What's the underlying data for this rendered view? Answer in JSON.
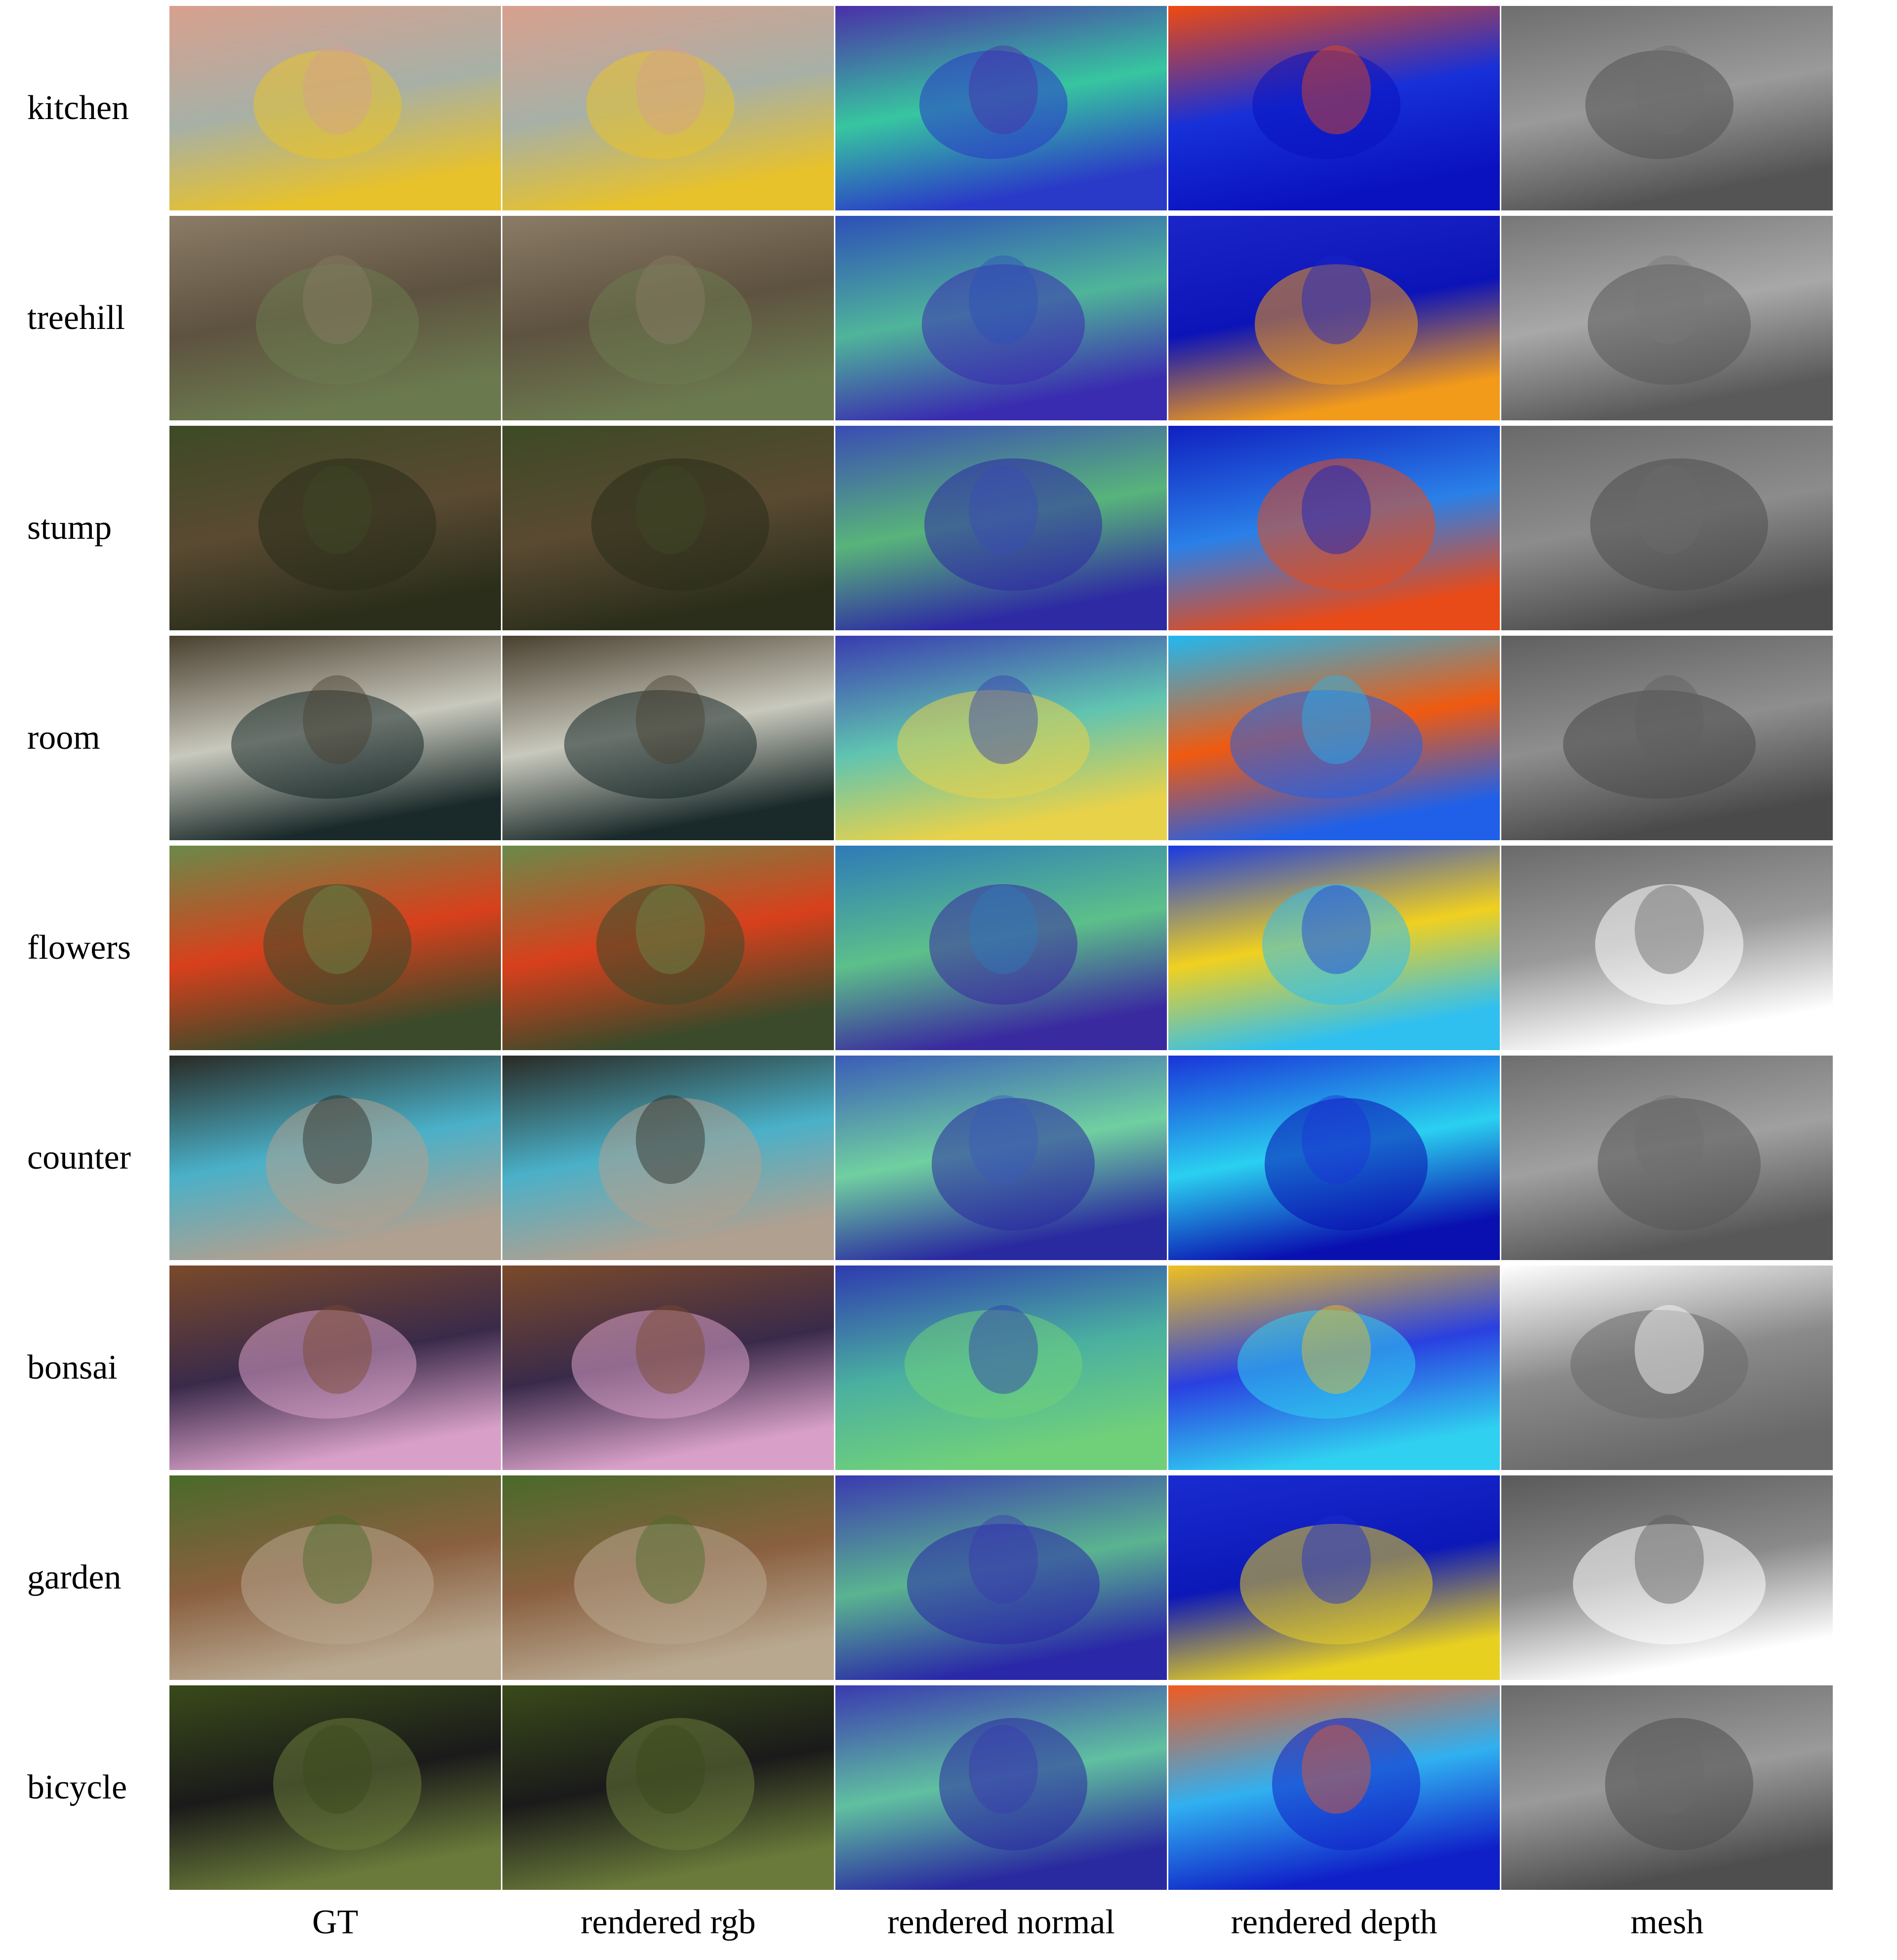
{
  "figure": {
    "columns": [
      "GT",
      "rendered rgb",
      "rendered normal",
      "rendered depth",
      "mesh"
    ],
    "rows": [
      {
        "scene": "kitchen",
        "rgb": [
          "#d8a08e",
          "#a7b0a6",
          "#e8c22a"
        ],
        "normal": [
          "#4a2fa8",
          "#37c6a0",
          "#2a3ac8"
        ],
        "depth": [
          "#f04a10",
          "#1730d8",
          "#0a12c0"
        ],
        "mesh": [
          "#6e6e6e",
          "#9a9a9a",
          "#545454"
        ]
      },
      {
        "scene": "treehill",
        "rgb": [
          "#8a7c66",
          "#5e5240",
          "#6b7a4e"
        ],
        "normal": [
          "#2d4fb8",
          "#4fb59a",
          "#3a2cb0"
        ],
        "depth": [
          "#1a26c8",
          "#0c14b8",
          "#f29a1a"
        ],
        "mesh": [
          "#777777",
          "#a8a8a8",
          "#5a5a5a"
        ]
      },
      {
        "scene": "stump",
        "rgb": [
          "#3d4a26",
          "#5a4a32",
          "#2a2e1a"
        ],
        "normal": [
          "#3a4cb4",
          "#58b47a",
          "#2e2aa4"
        ],
        "depth": [
          "#1020c0",
          "#2a80e8",
          "#e84a18"
        ],
        "mesh": [
          "#6a6a6a",
          "#8c8c8c",
          "#4e4e4e"
        ]
      },
      {
        "scene": "room",
        "rgb": [
          "#4a4030",
          "#c8c8bc",
          "#1a2a2a"
        ],
        "normal": [
          "#3a3cb0",
          "#60c4b0",
          "#e8d24a"
        ],
        "depth": [
          "#20b8f0",
          "#f05a10",
          "#2060e8"
        ],
        "mesh": [
          "#606060",
          "#8e8e8e",
          "#4a4a4a"
        ]
      },
      {
        "scene": "flowers",
        "rgb": [
          "#6a8a4a",
          "#d8401c",
          "#3a4a2a"
        ],
        "normal": [
          "#2e7ab8",
          "#5cc08a",
          "#3a2aa0"
        ],
        "depth": [
          "#1a3ae0",
          "#f0d020",
          "#30c0f0"
        ],
        "mesh": [
          "#6a6a6a",
          "#9a9a9a",
          "#ffffff"
        ]
      },
      {
        "scene": "counter",
        "rgb": [
          "#2a2a24",
          "#4ab0c8",
          "#b0a090"
        ],
        "normal": [
          "#3a5cb8",
          "#70d0a0",
          "#2a2aa0"
        ],
        "depth": [
          "#1a34d8",
          "#2ad0f0",
          "#0a10b0"
        ],
        "mesh": [
          "#6e6e6e",
          "#a0a0a0",
          "#585858"
        ]
      },
      {
        "scene": "bonsai",
        "rgb": [
          "#7a4a2a",
          "#3a2a4a",
          "#d8a0c8"
        ],
        "normal": [
          "#2e3ab0",
          "#4ab0a0",
          "#70d07a"
        ],
        "depth": [
          "#f0c020",
          "#2a40e0",
          "#30d0f0"
        ],
        "mesh": [
          "#ffffff",
          "#8a8a8a",
          "#6a6a6a"
        ]
      },
      {
        "scene": "garden",
        "rgb": [
          "#4a6a2a",
          "#8a6040",
          "#b8a890"
        ],
        "normal": [
          "#3a3ab0",
          "#5ab490",
          "#2a28a8"
        ],
        "depth": [
          "#1a2cd0",
          "#0c18b8",
          "#e8d020"
        ],
        "mesh": [
          "#5a5a5a",
          "#8a8a8a",
          "#ffffff"
        ]
      },
      {
        "scene": "bicycle",
        "rgb": [
          "#3a4a1a",
          "#1a1a1a",
          "#6a7a3a"
        ],
        "normal": [
          "#3a3ab0",
          "#60c0a0",
          "#2a2aa0"
        ],
        "depth": [
          "#f05a20",
          "#30b0f0",
          "#1020c8"
        ],
        "mesh": [
          "#6a6a6a",
          "#9a9a9a",
          "#4e4e4e"
        ]
      }
    ]
  }
}
